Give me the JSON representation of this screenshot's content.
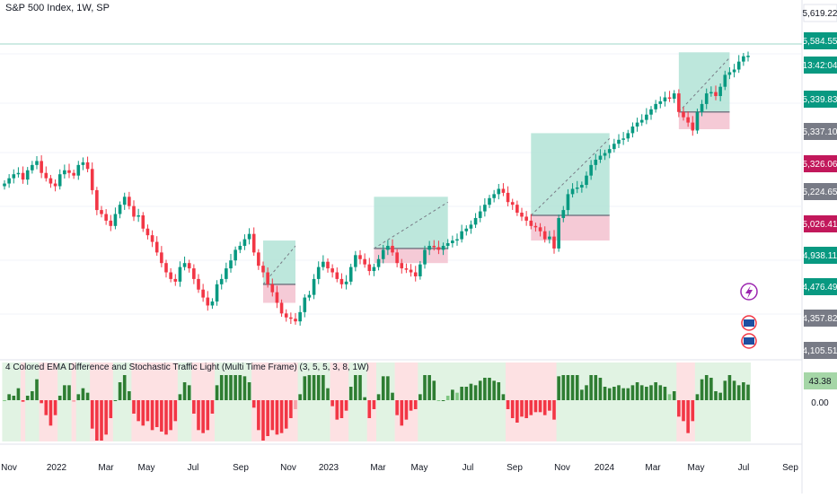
{
  "header": {
    "title": "S&P 500 Index, 1W, SP"
  },
  "indicator": {
    "title": "4 Colored EMA Difference and Stochastic Traffic Light (Multi Time Frame) (3, 5, 5, 3, 8, 1W)",
    "last_value": "43.38",
    "zero_label": "0.00"
  },
  "colors": {
    "up": "#089981",
    "down": "#f23645",
    "pos_hist": "#2e7d32",
    "pos_hist_light": "#81c784",
    "neg_hist": "#f23645",
    "neg_hist_light": "#f7a1a8",
    "bg_green": "#e1f3e3",
    "bg_red": "#fde1e3",
    "target_zone": "#b2e3d6",
    "stop_zone": "#f4c4d2",
    "resistance_line": "#9fd7c9"
  },
  "chart_data": {
    "type": "candlestick",
    "title": "S&P 500 Index, 1W, SP",
    "x_tick_labels": [
      "Nov",
      "2022",
      "Mar",
      "May",
      "Jul",
      "Sep",
      "Nov",
      "2023",
      "Mar",
      "May",
      "Jul",
      "Sep",
      "Nov",
      "2024",
      "Mar",
      "May",
      "Jul",
      "Sep"
    ],
    "y_tick_labels": [
      "4,105.51",
      "4,357.82",
      "4,476.49",
      "4,938.11",
      "5,026.41",
      "5,224.65",
      "5,326.06",
      "5,337.10",
      "5,339.83",
      "13:42:04",
      "5,584.55",
      "5,619.22"
    ],
    "price_badges": [
      {
        "label": "5,619.22",
        "color": "#ffffff"
      },
      {
        "label": "5,584.55",
        "color": "#089981"
      },
      {
        "label": "13:42:04",
        "color": "#089981"
      },
      {
        "label": "5,339.83",
        "color": "#089981"
      },
      {
        "label": "5,337.10",
        "color": "#787b86"
      },
      {
        "label": "5,326.06",
        "color": "#c2185b"
      },
      {
        "label": "5,224.65",
        "color": "#787b86"
      },
      {
        "label": "5,026.41",
        "color": "#c2185b"
      },
      {
        "label": "4,938.11",
        "color": "#089981"
      },
      {
        "label": "4,476.49",
        "color": "#089981"
      },
      {
        "label": "4,357.82",
        "color": "#787b86"
      },
      {
        "label": "4,105.51",
        "color": "#787b86"
      }
    ],
    "approx_closes": [
      4620,
      4660,
      4690,
      4700,
      4650,
      4720,
      4760,
      4790,
      4700,
      4660,
      4620,
      4600,
      4690,
      4720,
      4700,
      4680,
      4760,
      4780,
      4730,
      4570,
      4420,
      4390,
      4340,
      4300,
      4390,
      4460,
      4520,
      4450,
      4370,
      4380,
      4280,
      4230,
      4180,
      4100,
      4020,
      3950,
      3900,
      3880,
      3990,
      4020,
      3980,
      3900,
      3820,
      3760,
      3700,
      3730,
      3860,
      3900,
      3980,
      4040,
      4120,
      4150,
      4200,
      4240,
      4100,
      4000,
      3950,
      3860,
      3800,
      3720,
      3640,
      3610,
      3600,
      3580,
      3650,
      3760,
      3780,
      3900,
      3990,
      4030,
      3980,
      3950,
      3900,
      3860,
      3880,
      3990,
      4080,
      4050,
      4010,
      3960,
      3990,
      4050,
      4120,
      4150,
      4100,
      4020,
      3980,
      3970,
      3950,
      3920,
      4010,
      4120,
      4150,
      4140,
      4120,
      4150,
      4170,
      4190,
      4200,
      4260,
      4280,
      4310,
      4360,
      4410,
      4460,
      4510,
      4540,
      4580,
      4550,
      4480,
      4460,
      4400,
      4370,
      4340,
      4300,
      4290,
      4260,
      4200,
      4220,
      4130,
      4360,
      4420,
      4540,
      4580,
      4590,
      4610,
      4680,
      4760,
      4800,
      4830,
      4850,
      4880,
      4920,
      4950,
      4960,
      5000,
      5050,
      5080,
      5100,
      5140,
      5180,
      5220,
      5240,
      5270,
      5260,
      5300,
      5160,
      5120,
      5080,
      5020,
      5160,
      5220,
      5300,
      5310,
      5280,
      5350,
      5440,
      5460,
      5480,
      5540,
      5580,
      5584
    ],
    "ylim": [
      3500,
      5700
    ],
    "zones": [
      {
        "name": "long-setup-1",
        "entry": 3860,
        "target": 4190,
        "stop": 3720
      },
      {
        "name": "long-setup-2",
        "entry": 4130,
        "target": 4520,
        "stop": 4020
      },
      {
        "name": "long-setup-3",
        "entry": 4380,
        "target": 5000,
        "stop": 4190
      },
      {
        "name": "long-setup-4",
        "entry": 5160,
        "target": 5610,
        "stop": 5030
      }
    ]
  }
}
